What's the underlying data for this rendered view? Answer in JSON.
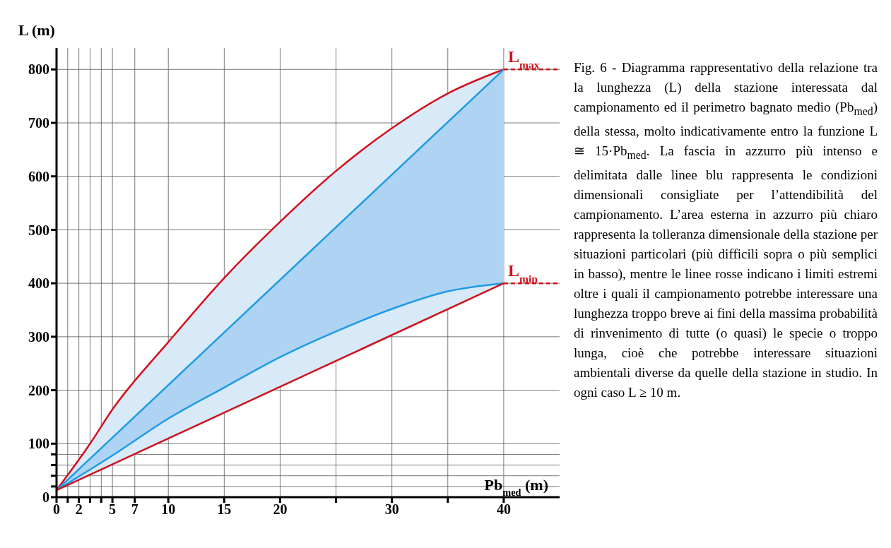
{
  "chart_data": {
    "type": "line",
    "xlabel": "Pb$_{med}$ (m)",
    "ylabel": "L (m)",
    "xlim": [
      0,
      45
    ],
    "xticks": [
      0,
      {
        "value": 1,
        "label": null
      },
      2,
      {
        "value": 3,
        "label": null
      },
      {
        "value": 4,
        "label": null
      },
      5,
      7,
      10,
      15,
      20,
      {
        "value": 25,
        "label": null
      },
      30,
      {
        "value": 35,
        "label": null
      },
      40
    ],
    "ylim": [
      0,
      840
    ],
    "yticks": [
      0,
      {
        "value": 20,
        "label": null
      },
      {
        "value": 40,
        "label": null
      },
      {
        "value": 60,
        "label": null
      },
      {
        "value": 80,
        "label": null
      },
      100,
      200,
      300,
      400,
      500,
      600,
      700,
      800
    ],
    "grid": true,
    "marker": "none",
    "series": [
      {
        "color": "#d0121e",
        "x": [
          0,
          3,
          5,
          10,
          15,
          20,
          25,
          30,
          35,
          40
        ],
        "values": [
          13,
          100,
          164,
          290,
          410,
          515,
          610,
          690,
          755,
          800
        ]
      },
      {
        "color": "#1e9be6",
        "x": [
          0,
          40
        ],
        "values": [
          13,
          800
        ]
      },
      {
        "color": "#1e9be6",
        "x": [
          0,
          5,
          10,
          15,
          20,
          25,
          30,
          35,
          40
        ],
        "values": [
          13,
          78,
          147,
          205,
          262,
          310,
          352,
          385,
          400
        ]
      },
      {
        "color": "#d0121e",
        "x": [
          0,
          40
        ],
        "values": [
          13,
          400
        ]
      },
      {
        "color": "#d0121e",
        "x": [
          40,
          45
        ],
        "values": [
          800,
          800
        ],
        "line_style": "dashed"
      },
      {
        "color": "#d0121e",
        "x": [
          40,
          45
        ],
        "values": [
          400,
          400
        ],
        "line_style": "dashed"
      }
    ],
    "annotations": [
      {
        "text": "L$_{max}$",
        "x": 40,
        "y": 800
      },
      {
        "text": "L$_{min}$",
        "x": 40,
        "y": 400
      },
      "Fig. 6 - Diagramma rappresentativo della relazione tra la lunghezza (L) della stazione interessata dal campionamento ed il perimetro bagnato medio (Pb$_{med}$) della stessa, molto indicativamente entro la funzione L ≅ 15·Pb$_{med}$. La fascia in azzurro più intenso e delimitata dalle linee blu rappresenta le condizioni dimensionali consigliate per l’attendibilità del campionamento. L’area esterna in azzurro più chiaro rappresenta la tolleranza dimensionale della stazione per situazioni particolari (più difficili sopra o più semplici in basso), mentre le linee rosse indicano i limiti estremi oltre i quali il campionamento potrebbe interessare una lunghezza troppo breve ai fini della massima probabilità di rinvenimento di tutte (o quasi) le specie o troppo lunga, cioè che potrebbe interessare situazioni ambientali diverse da quelle della stazione in studio. In ogni caso L ≥ 10 m."
    ]
  }
}
